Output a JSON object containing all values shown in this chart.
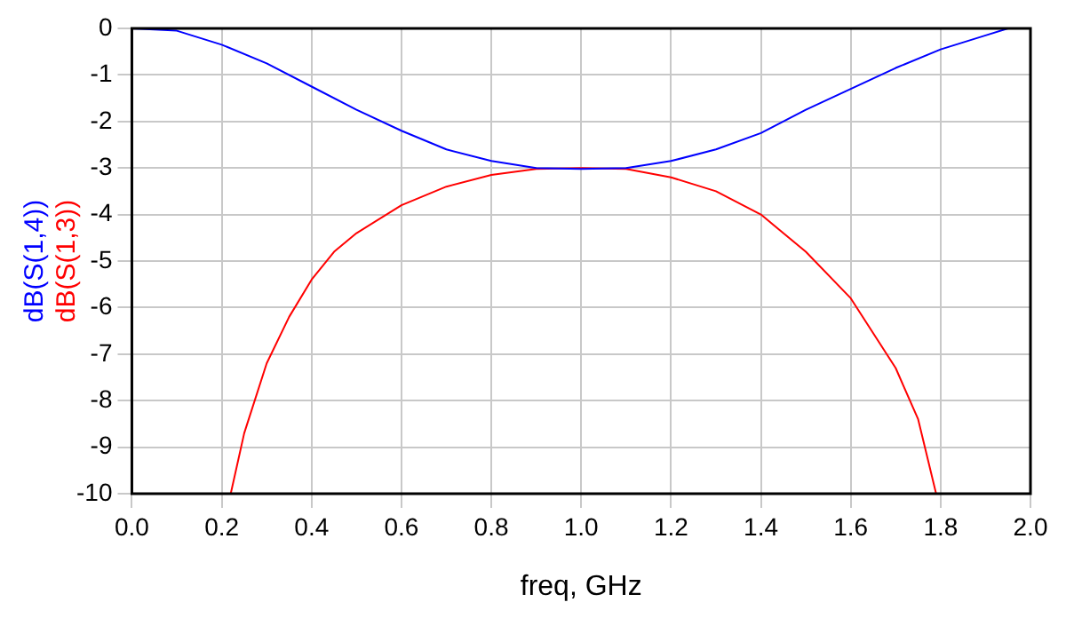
{
  "chart_data": {
    "type": "line",
    "xlabel": "freq, GHz",
    "xlim": [
      0,
      2
    ],
    "xticks": [
      {
        "value": 0,
        "label": "0.0"
      },
      {
        "value": 0.2,
        "label": "0.2"
      },
      {
        "value": 0.4,
        "label": "0.4"
      },
      {
        "value": 0.6,
        "label": "0.6"
      },
      {
        "value": 0.8,
        "label": "0.8"
      },
      {
        "value": 1,
        "label": "1.0"
      },
      {
        "value": 1.2,
        "label": "1.2"
      },
      {
        "value": 1.4,
        "label": "1.4"
      },
      {
        "value": 1.6,
        "label": "1.6"
      },
      {
        "value": 1.8,
        "label": "1.8"
      },
      {
        "value": 2,
        "label": "2.0"
      }
    ],
    "ylim": [
      -10,
      0
    ],
    "yticks": [
      -10,
      -9,
      -8,
      -7,
      -6,
      -5,
      -4,
      -3,
      -2,
      -1,
      0
    ],
    "grid": true,
    "legend": false,
    "marker": "none",
    "line_style": "solid",
    "series": [
      {
        "name": "dB(S(1,4))",
        "color": "#0000ff",
        "x": [
          0,
          0.1,
          0.2,
          0.3,
          0.4,
          0.5,
          0.6,
          0.7,
          0.8,
          0.9,
          1.0,
          1.1,
          1.2,
          1.3,
          1.4,
          1.5,
          1.6,
          1.7,
          1.8,
          1.9,
          1.95
        ],
        "values": [
          0,
          -0.05,
          -0.35,
          -0.75,
          -1.25,
          -1.75,
          -2.2,
          -2.6,
          -2.85,
          -3.0,
          -3.02,
          -3.0,
          -2.85,
          -2.6,
          -2.25,
          -1.75,
          -1.3,
          -0.85,
          -0.45,
          -0.15,
          0
        ]
      },
      {
        "name": "dB(S(1,3))",
        "color": "#ff0000",
        "x": [
          0.22,
          0.25,
          0.3,
          0.35,
          0.4,
          0.45,
          0.5,
          0.6,
          0.7,
          0.8,
          0.9,
          1.0,
          1.1,
          1.2,
          1.3,
          1.4,
          1.5,
          1.6,
          1.7,
          1.75,
          1.79
        ],
        "values": [
          -10,
          -8.7,
          -7.2,
          -6.2,
          -5.4,
          -4.8,
          -4.4,
          -3.8,
          -3.4,
          -3.15,
          -3.02,
          -3.0,
          -3.02,
          -3.2,
          -3.5,
          -4.0,
          -4.8,
          -5.8,
          -7.3,
          -8.4,
          -10
        ]
      }
    ]
  }
}
